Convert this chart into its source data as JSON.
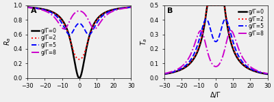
{
  "x_min": -30,
  "x_max": 30,
  "n_points": 3000,
  "g_values": [
    0,
    2,
    5,
    8
  ],
  "colors": [
    "#000000",
    "#ff0000",
    "#0000ff",
    "#cc00cc"
  ],
  "linestyles": [
    "solid",
    "dotted",
    "dashed",
    "dashdot"
  ],
  "linewidths": [
    1.8,
    1.4,
    1.4,
    1.4
  ],
  "legend_labels": [
    "g/Γ=0",
    "g/Γ=2",
    "g/Γ=5",
    "g/Γ=8"
  ],
  "panel_A_ylabel": "R_a",
  "panel_B_ylabel": "T_a",
  "xlabel": "Δ/Γ",
  "panel_A_ylim": [
    0.0,
    1.0
  ],
  "panel_B_ylim": [
    0.0,
    0.5
  ],
  "panel_A_yticks": [
    0.0,
    0.2,
    0.4,
    0.6,
    0.8,
    1.0
  ],
  "panel_B_yticks": [
    0.0,
    0.1,
    0.2,
    0.3,
    0.4,
    0.5
  ],
  "xticks": [
    -30,
    -20,
    -10,
    0,
    10,
    20,
    30
  ],
  "label_A": "A",
  "label_B": "B",
  "background_color": "#f0f0f0",
  "tick_fontsize": 6,
  "label_fontsize": 7,
  "legend_fontsize": 5.5,
  "Gamma_eff": 5.0
}
